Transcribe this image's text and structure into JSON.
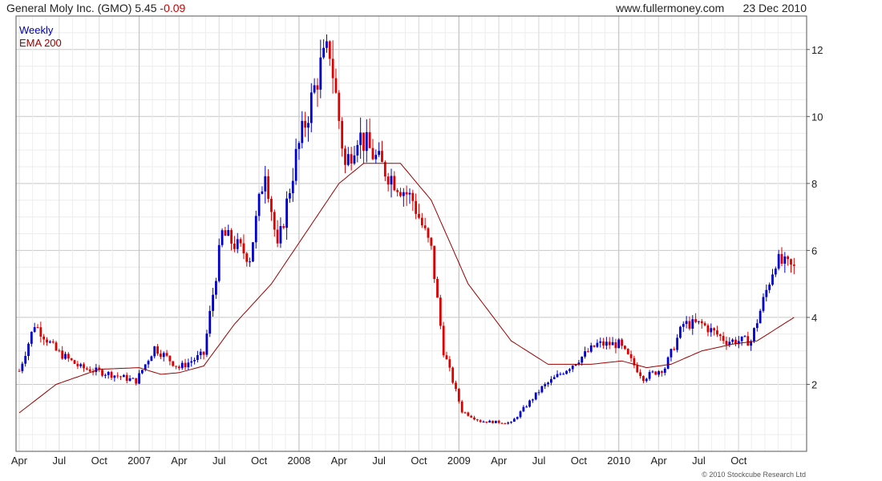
{
  "header": {
    "title": "General Moly Inc. (GMO) 5.45",
    "change": "-0.09",
    "site": "www.fullermoney.com",
    "date": "23 Dec 2010"
  },
  "legend": {
    "weekly": "Weekly",
    "ema": "EMA 200"
  },
  "copyright": "© 2010 Stockcube Research Ltd",
  "colors": {
    "up": "#0000cc",
    "down": "#dd0000",
    "ema": "#990000",
    "grid": "#d9d9d9",
    "weekly_label": "#0000aa",
    "ema_label": "#990000"
  },
  "chart_data": {
    "type": "line",
    "title": "General Moly Inc. (GMO)",
    "ylim": [
      0,
      13
    ],
    "yticks": [
      2,
      4,
      6,
      8,
      10,
      12
    ],
    "xlabels": [
      "Apr",
      "Jul",
      "Oct",
      "2007",
      "Apr",
      "Jul",
      "Oct",
      "2008",
      "Apr",
      "Jul",
      "Oct",
      "2009",
      "Apr",
      "Jul",
      "Oct",
      "2010",
      "Apr",
      "Jul",
      "Oct"
    ],
    "grid": true,
    "legend_position": "top-left",
    "x_weeks": [
      0,
      13,
      26,
      39,
      52,
      65,
      78,
      91,
      104,
      117,
      130,
      143,
      156,
      169,
      182,
      195,
      208,
      221,
      234,
      254
    ],
    "price": [
      2.4,
      3.8,
      3.0,
      2.5,
      2.3,
      2.1,
      3.1,
      2.5,
      2.9,
      6.5,
      5.8,
      8.5,
      6.0,
      8.8,
      11.5,
      12.0,
      8.5,
      9.5,
      8.5,
      7.5,
      6.0,
      3.0,
      1.2,
      0.9,
      0.85,
      1.9,
      2.6,
      3.2,
      3.2,
      2.2,
      2.5,
      3.8,
      3.8,
      3.3,
      3.3,
      5.7,
      5.45
    ],
    "price_weeks": [
      0,
      5,
      12,
      20,
      30,
      38,
      44,
      52,
      60,
      66,
      75,
      80,
      84,
      90,
      98,
      101,
      106,
      110,
      118,
      128,
      134,
      138,
      144,
      150,
      160,
      170,
      180,
      188,
      195,
      203,
      210,
      216,
      222,
      230,
      238,
      246,
      252
    ],
    "ema": [
      1.15,
      2.0,
      2.45,
      2.5,
      2.3,
      2.35,
      2.55,
      3.8,
      5.0,
      6.5,
      8.0,
      8.6,
      8.6,
      7.5,
      5.0,
      3.3,
      2.6,
      2.6,
      2.7,
      2.5,
      2.6,
      3.0,
      3.2,
      3.3,
      4.0
    ],
    "ema_weeks": [
      0,
      12,
      26,
      39,
      46,
      52,
      60,
      70,
      82,
      93,
      104,
      112,
      124,
      134,
      146,
      160,
      172,
      186,
      196,
      204,
      212,
      222,
      232,
      240,
      252
    ]
  }
}
